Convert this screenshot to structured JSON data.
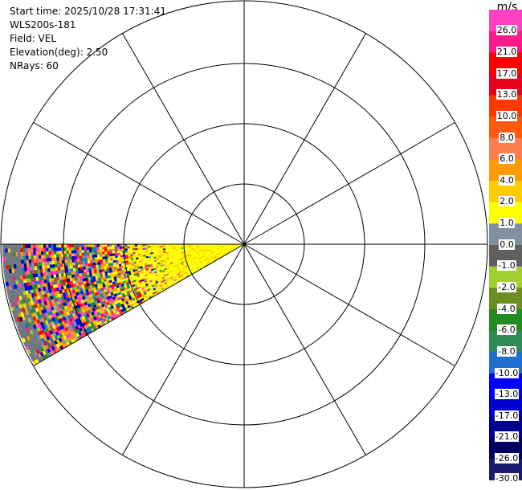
{
  "info": {
    "start_time": "Start time: 2025/10/28 17:31:41",
    "site": "WLS200s-181",
    "field": "Field: VEL",
    "elevation": "Elevation(deg): 2.50",
    "nrays": "NRays: 60"
  },
  "colorbar": {
    "unit": "m/s",
    "labels": [
      "26.0",
      "21.0",
      "17.0",
      "13.0",
      "10.0",
      "8.0",
      "6.0",
      "4.0",
      "2.0",
      "1.0",
      "0.0",
      "-1.0",
      "-2.0",
      "-4.0",
      "-6.0",
      "-8.0",
      "-10.0",
      "-13.0",
      "-17.0",
      "-21.0",
      "-26.0",
      "-30.0"
    ],
    "colors": [
      "#ff40c0",
      "#ff1a8c",
      "#ff0000",
      "#e8001c",
      "#ff3a00",
      "#ff5a10",
      "#ff7c50",
      "#ff9a00",
      "#ffcc00",
      "#ffff00",
      "#8090a0",
      "#606060",
      "#a0d030",
      "#6b8e23",
      "#228b22",
      "#2e8b57",
      "#1e6fd0",
      "#0000ff",
      "#0000cd",
      "#000090",
      "#000060",
      "#1a1a6e"
    ]
  },
  "chart_data": {
    "type": "ppi",
    "field": "VEL",
    "units": "m/s",
    "elevation_deg": 2.5,
    "n_rays": 60,
    "sector_azimuth_deg": [
      240,
      270
    ],
    "sector_description": "near-range gates yellow (about 2 to 4 m/s); far-range gates noisy multicolor; grey (about 0 m/s) band at the outer edge",
    "range_rings": 4,
    "radial_spokes_deg": [
      0,
      30,
      60,
      90,
      120,
      150,
      180,
      210,
      240,
      270,
      300,
      330
    ],
    "colorbar_levels": [
      -30,
      -26,
      -21,
      -17,
      -13,
      -10,
      -8,
      -6,
      -4,
      -2,
      -1,
      0,
      1,
      2,
      4,
      6,
      8,
      10,
      13,
      17,
      21,
      26
    ]
  }
}
